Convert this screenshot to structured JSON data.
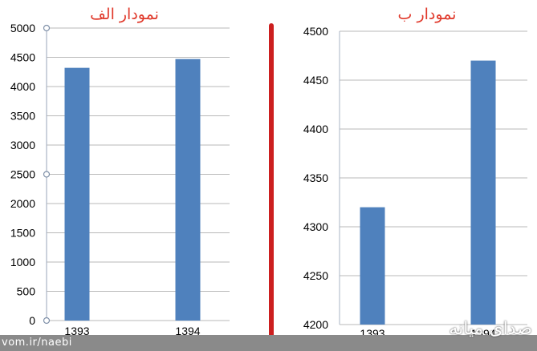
{
  "chart_data": [
    {
      "type": "bar",
      "title": "نمودار الف",
      "categories": [
        "1393",
        "1394"
      ],
      "values": [
        4320,
        4470
      ],
      "ylim": [
        0,
        5000
      ],
      "yticks": [
        "0",
        "500",
        "1000",
        "1500",
        "2000",
        "2500",
        "3000",
        "3500",
        "4000",
        "4500",
        "5000"
      ],
      "grid": true,
      "bar_color": "#4f81bd",
      "title_color": "#e0392b"
    },
    {
      "type": "bar",
      "title": "نمودار ب",
      "categories": [
        "1393",
        "1394"
      ],
      "values": [
        4320,
        4470
      ],
      "ylim": [
        4200,
        4500
      ],
      "yticks": [
        "4200",
        "4250",
        "4300",
        "4350",
        "4400",
        "4450",
        "4500"
      ],
      "grid": true,
      "bar_color": "#4f81bd",
      "title_color": "#e0392b"
    }
  ],
  "divider_color": "#cc1f1f",
  "watermark": {
    "left_text": "vom.ir/naebi",
    "right_text": "صدای میانه"
  }
}
